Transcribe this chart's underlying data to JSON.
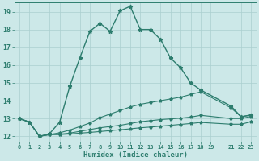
{
  "xlabel": "Humidex (Indice chaleur)",
  "bg_color": "#cce8e8",
  "grid_color": "#aacfcf",
  "line_color": "#2d7d6e",
  "xlim": [
    -0.5,
    23.5
  ],
  "ylim": [
    11.7,
    19.5
  ],
  "xtick_positions": [
    0,
    1,
    2,
    3,
    4,
    5,
    6,
    7,
    8,
    9,
    10,
    11,
    12,
    13,
    14,
    15,
    16,
    17,
    18,
    19,
    21,
    22,
    23
  ],
  "xtick_labels": [
    "0",
    "1",
    "2",
    "3",
    "4",
    "5",
    "6",
    "7",
    "8",
    "9",
    "10",
    "11",
    "12",
    "13",
    "14",
    "15",
    "16",
    "17",
    "18",
    "19",
    "21",
    "22",
    "23"
  ],
  "ytick_positions": [
    12,
    13,
    14,
    15,
    16,
    17,
    18,
    19
  ],
  "ytick_labels": [
    "12",
    "13",
    "14",
    "15",
    "16",
    "17",
    "18",
    "19"
  ],
  "series": [
    {
      "x": [
        0,
        1,
        2,
        3,
        4,
        5,
        6,
        7,
        8,
        9,
        10,
        11,
        12,
        13,
        14,
        15,
        16,
        17,
        18,
        21,
        22,
        23
      ],
      "y": [
        13.0,
        12.8,
        12.0,
        12.15,
        12.8,
        14.8,
        16.4,
        17.9,
        18.35,
        17.9,
        19.05,
        19.3,
        18.0,
        18.0,
        17.45,
        16.4,
        15.85,
        15.0,
        14.6,
        13.7,
        13.1,
        13.2
      ]
    },
    {
      "x": [
        0,
        1,
        2,
        3,
        4,
        5,
        6,
        7,
        8,
        9,
        10,
        11,
        12,
        13,
        14,
        15,
        16,
        17,
        18,
        21,
        22,
        23
      ],
      "y": [
        13.0,
        12.8,
        12.0,
        12.1,
        12.2,
        12.35,
        12.55,
        12.75,
        13.05,
        13.25,
        13.45,
        13.65,
        13.8,
        13.9,
        14.0,
        14.1,
        14.2,
        14.35,
        14.5,
        13.6,
        13.1,
        13.2
      ]
    },
    {
      "x": [
        0,
        1,
        2,
        3,
        4,
        5,
        6,
        7,
        8,
        9,
        10,
        11,
        12,
        13,
        14,
        15,
        16,
        17,
        18,
        21,
        22,
        23
      ],
      "y": [
        13.0,
        12.8,
        12.0,
        12.1,
        12.12,
        12.18,
        12.28,
        12.38,
        12.48,
        12.55,
        12.62,
        12.72,
        12.82,
        12.88,
        12.94,
        12.98,
        13.02,
        13.08,
        13.18,
        13.0,
        13.0,
        13.12
      ]
    },
    {
      "x": [
        0,
        1,
        2,
        3,
        4,
        5,
        6,
        7,
        8,
        9,
        10,
        11,
        12,
        13,
        14,
        15,
        16,
        17,
        18,
        21,
        22,
        23
      ],
      "y": [
        13.0,
        12.8,
        12.0,
        12.1,
        12.1,
        12.13,
        12.18,
        12.22,
        12.27,
        12.32,
        12.37,
        12.42,
        12.48,
        12.52,
        12.57,
        12.62,
        12.67,
        12.72,
        12.78,
        12.68,
        12.68,
        12.82
      ]
    }
  ]
}
